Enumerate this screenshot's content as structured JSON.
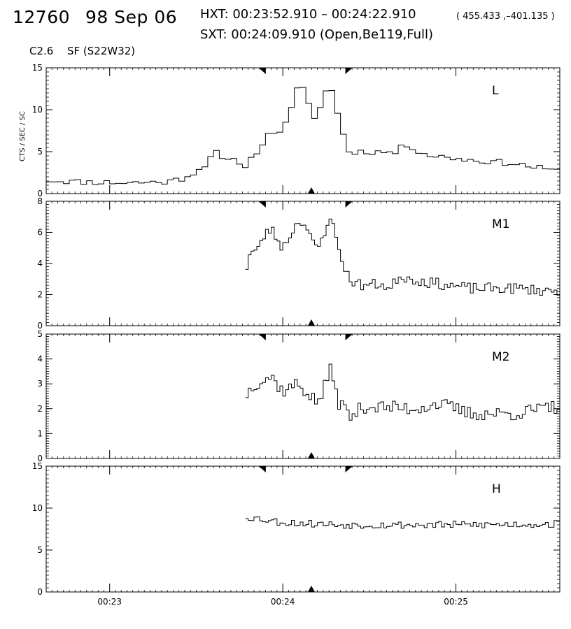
{
  "header": {
    "event_id": "12760",
    "date": "98 Sep 06",
    "hxt_line": "HXT: 00:23:52.910 – 00:24:22.910",
    "coords": "( 455.433 ,–401.135 )",
    "sxt_line": "SXT: 00:24:09.910 (Open,Be119,Full)",
    "goes_class": "C2.6",
    "flare_info": "SF (S22W32)"
  },
  "chart_data": {
    "type": "line",
    "style": "step",
    "ylabel": "CTS / SEC / SC",
    "x_ticks": [
      "00:23",
      "00:24",
      "00:25"
    ],
    "x_range": [
      "00:22:38",
      "00:25:36"
    ],
    "markers": {
      "top_left": "00:23:52.9",
      "top_right": "00:24:22.9",
      "bottom": "00:24:09.9"
    },
    "panels": [
      {
        "name": "L",
        "ylim": [
          0,
          15
        ],
        "yticks": [
          0,
          5,
          10,
          15
        ],
        "anchors": [
          [
            "00:22:38",
            1.6
          ],
          [
            "00:22:50",
            1.4
          ],
          [
            "00:23:05",
            1.3
          ],
          [
            "00:23:20",
            1.4
          ],
          [
            "00:23:25",
            1.8
          ],
          [
            "00:23:32",
            3.0
          ],
          [
            "00:23:35",
            4.5
          ],
          [
            "00:23:36",
            5.7
          ],
          [
            "00:23:38",
            4.0
          ],
          [
            "00:23:46",
            3.8
          ],
          [
            "00:23:47",
            3.2
          ],
          [
            "00:23:50",
            4.6
          ],
          [
            "00:23:53",
            6.0
          ],
          [
            "00:23:56",
            7.4
          ],
          [
            "00:24:00",
            7.5
          ],
          [
            "00:24:02",
            9.0
          ],
          [
            "00:24:05",
            12.3
          ],
          [
            "00:24:07",
            12.5
          ],
          [
            "00:24:09",
            11.0
          ],
          [
            "00:24:11",
            9.0
          ],
          [
            "00:24:12",
            9.2
          ],
          [
            "00:24:14",
            11.2
          ],
          [
            "00:24:16",
            13.2
          ],
          [
            "00:24:18",
            11.5
          ],
          [
            "00:24:20",
            8.0
          ],
          [
            "00:24:23",
            5.0
          ],
          [
            "00:24:30",
            5.0
          ],
          [
            "00:24:40",
            4.9
          ],
          [
            "00:24:42",
            6.0
          ],
          [
            "00:24:50",
            4.6
          ],
          [
            "00:25:05",
            4.0
          ],
          [
            "00:25:20",
            3.6
          ],
          [
            "00:25:36",
            2.6
          ]
        ],
        "noise": 0.35,
        "seed": 11
      },
      {
        "name": "M1",
        "ylim": [
          0,
          8
        ],
        "yticks": [
          0,
          2,
          4,
          6,
          8
        ],
        "anchors": [
          [
            "00:23:47",
            3.0
          ],
          [
            "00:23:48",
            4.6
          ],
          [
            "00:23:52",
            5.0
          ],
          [
            "00:23:54",
            6.0
          ],
          [
            "00:23:56",
            6.2
          ],
          [
            "00:23:58",
            5.6
          ],
          [
            "00:24:00",
            5.0
          ],
          [
            "00:24:03",
            6.0
          ],
          [
            "00:24:06",
            6.9
          ],
          [
            "00:24:08",
            6.4
          ],
          [
            "00:24:11",
            5.0
          ],
          [
            "00:24:13",
            5.2
          ],
          [
            "00:24:15",
            6.2
          ],
          [
            "00:24:16",
            7.3
          ],
          [
            "00:24:18",
            6.0
          ],
          [
            "00:24:20",
            4.5
          ],
          [
            "00:24:23",
            3.0
          ],
          [
            "00:24:27",
            2.6
          ],
          [
            "00:24:35",
            2.7
          ],
          [
            "00:24:37",
            2.2
          ],
          [
            "00:24:40",
            3.2
          ],
          [
            "00:24:50",
            2.8
          ],
          [
            "00:25:05",
            2.4
          ],
          [
            "00:25:20",
            2.4
          ],
          [
            "00:25:36",
            2.2
          ]
        ],
        "noise": 0.35,
        "seed": 23
      },
      {
        "name": "M2",
        "ylim": [
          0,
          5
        ],
        "yticks": [
          0,
          1,
          2,
          3,
          4,
          5
        ],
        "anchors": [
          [
            "00:23:47",
            2.5
          ],
          [
            "00:23:50",
            3.0
          ],
          [
            "00:23:56",
            3.3
          ],
          [
            "00:24:00",
            2.7
          ],
          [
            "00:24:05",
            3.0
          ],
          [
            "00:24:09",
            2.6
          ],
          [
            "00:24:12",
            2.2
          ],
          [
            "00:24:15",
            3.0
          ],
          [
            "00:24:17",
            3.7
          ],
          [
            "00:24:19",
            2.3
          ],
          [
            "00:24:22",
            2.0
          ],
          [
            "00:24:23",
            1.6
          ],
          [
            "00:24:28",
            2.1
          ],
          [
            "00:24:45",
            2.0
          ],
          [
            "00:24:54",
            2.2
          ],
          [
            "00:25:05",
            1.8
          ],
          [
            "00:25:20",
            1.8
          ],
          [
            "00:25:36",
            2.1
          ]
        ],
        "noise": 0.28,
        "seed": 37
      },
      {
        "name": "H",
        "ylim": [
          0,
          15
        ],
        "yticks": [
          0,
          5,
          10,
          15
        ],
        "anchors": [
          [
            "00:23:47",
            9.0
          ],
          [
            "00:24:00",
            8.3
          ],
          [
            "00:24:20",
            8.0
          ],
          [
            "00:25:00",
            8.0
          ],
          [
            "00:25:36",
            8.1
          ]
        ],
        "noise": 0.45,
        "seed": 53
      }
    ]
  }
}
